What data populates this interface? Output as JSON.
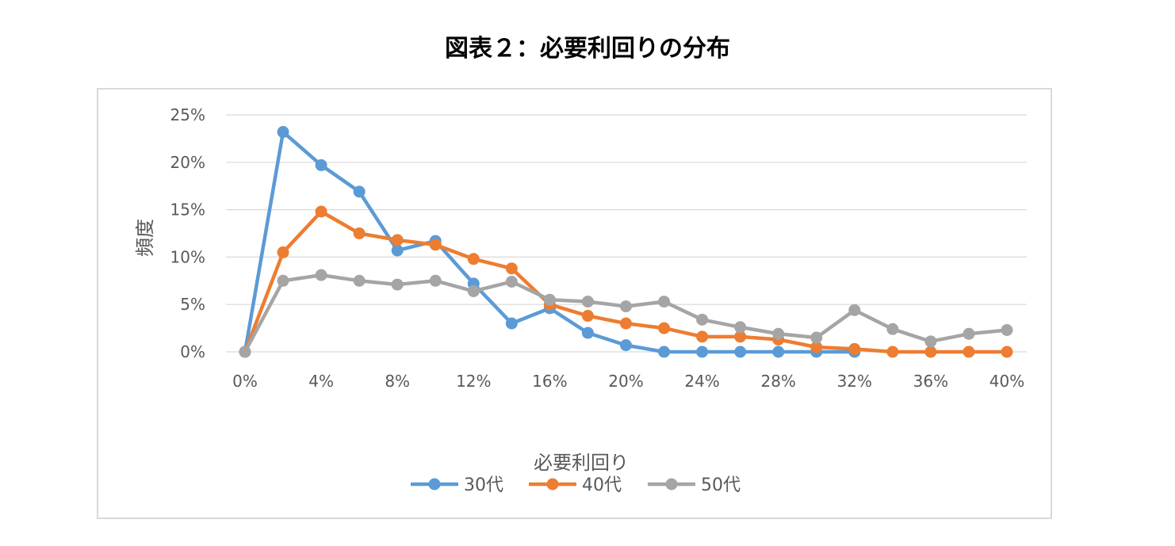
{
  "figure_title": "図表２：必要利回りの分布",
  "chart_data": {
    "type": "line",
    "title": "",
    "xlabel": "必要利回り",
    "ylabel": "頻度",
    "x": [
      "0%",
      "2%",
      "4%",
      "6%",
      "8%",
      "10%",
      "12%",
      "14%",
      "16%",
      "18%",
      "20%",
      "22%",
      "24%",
      "26%",
      "28%",
      "30%",
      "32%",
      "34%",
      "36%",
      "38%",
      "40%"
    ],
    "x_tick_labels": [
      "0%",
      "4%",
      "8%",
      "12%",
      "16%",
      "20%",
      "24%",
      "28%",
      "32%",
      "36%",
      "40%"
    ],
    "y_tick_labels": [
      "0%",
      "5%",
      "10%",
      "15%",
      "20%",
      "25%"
    ],
    "ylim": [
      0,
      25
    ],
    "grid": "horizontal",
    "legend_position": "bottom",
    "series": [
      {
        "name": "30代",
        "color": "#5b9bd5",
        "values": [
          0,
          23.2,
          19.7,
          16.9,
          10.7,
          11.7,
          7.2,
          3.0,
          4.6,
          2.0,
          0.7,
          0,
          0,
          0,
          0,
          0,
          0,
          null,
          null,
          null,
          null
        ]
      },
      {
        "name": "40代",
        "color": "#ed7d31",
        "values": [
          0,
          10.5,
          14.8,
          12.5,
          11.8,
          11.3,
          9.8,
          8.8,
          5.0,
          3.8,
          3.0,
          2.5,
          1.6,
          1.6,
          1.3,
          0.5,
          0.3,
          0,
          0,
          0,
          0
        ]
      },
      {
        "name": "50代",
        "color": "#a5a5a5",
        "values": [
          0,
          7.5,
          8.1,
          7.5,
          7.1,
          7.5,
          6.4,
          7.4,
          5.5,
          5.3,
          4.8,
          5.3,
          3.4,
          2.6,
          1.9,
          1.5,
          4.4,
          2.4,
          1.1,
          1.9,
          2.3
        ]
      }
    ]
  }
}
